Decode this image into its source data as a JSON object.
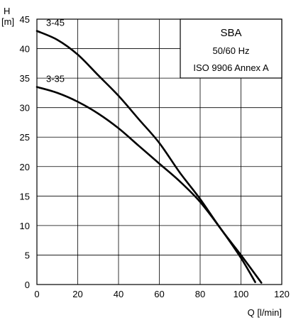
{
  "chart_data": {
    "type": "line",
    "xlabel": "Q [l/min]",
    "ylabel_lines": [
      "H",
      "[m]"
    ],
    "xlim": [
      0,
      120
    ],
    "ylim": [
      0,
      45
    ],
    "xticks": [
      0,
      20,
      40,
      60,
      80,
      100,
      120
    ],
    "yticks": [
      0,
      5,
      10,
      15,
      20,
      25,
      30,
      35,
      40,
      45
    ],
    "grid": true,
    "info_box": {
      "placement": "top-right",
      "title": "SBA",
      "lines": [
        "50/60  Hz",
        "ISO 9906 Annex A"
      ]
    },
    "series": [
      {
        "name": "3-45",
        "x": [
          0,
          10,
          20,
          30,
          40,
          50,
          60,
          70,
          80,
          90,
          100,
          110
        ],
        "y": [
          43,
          41.5,
          39,
          35.5,
          32,
          28,
          24,
          19,
          14.5,
          9.5,
          5,
          0.3
        ]
      },
      {
        "name": "3-35",
        "x": [
          0,
          10,
          20,
          30,
          40,
          50,
          60,
          70,
          80,
          90,
          100,
          107
        ],
        "y": [
          33.5,
          32.5,
          31,
          29,
          26.5,
          23.5,
          20.5,
          17.5,
          14,
          9.5,
          4.5,
          0.4
        ]
      }
    ]
  }
}
